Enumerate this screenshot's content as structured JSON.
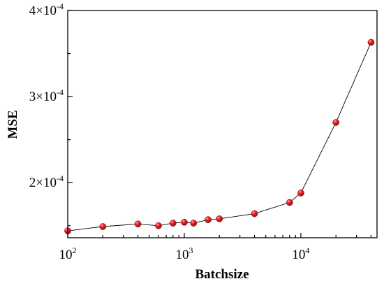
{
  "chart_data": {
    "type": "scatter",
    "title": "",
    "xlabel": "Batchsize",
    "ylabel": "MSE",
    "x_scale": "log",
    "xlim": [
      100,
      45000
    ],
    "ylim": [
      0.000136,
      0.0004
    ],
    "grid": false,
    "x_ticks": [
      {
        "value": 100,
        "base": "10",
        "exp": "2"
      },
      {
        "value": 1000,
        "base": "10",
        "exp": "3"
      },
      {
        "value": 10000,
        "base": "10",
        "exp": "4"
      }
    ],
    "y_ticks": [
      {
        "value": 0.0002,
        "mantissa": "2×10",
        "exp": "-4"
      },
      {
        "value": 0.0003,
        "mantissa": "3×10",
        "exp": "-4"
      },
      {
        "value": 0.0004,
        "mantissa": "4×10",
        "exp": "-4"
      }
    ],
    "series": [
      {
        "marker_color": "#e0141e",
        "line_color": "#000000",
        "x": [
          100,
          200,
          400,
          600,
          800,
          1000,
          1200,
          1600,
          2000,
          4000,
          8000,
          10000,
          20000,
          40000
        ],
        "y": [
          0.000144,
          0.000149,
          0.000152,
          0.00015,
          0.000153,
          0.000154,
          0.000153,
          0.000157,
          0.000158,
          0.000164,
          0.000177,
          0.000188,
          0.00027,
          0.000363
        ]
      }
    ]
  }
}
